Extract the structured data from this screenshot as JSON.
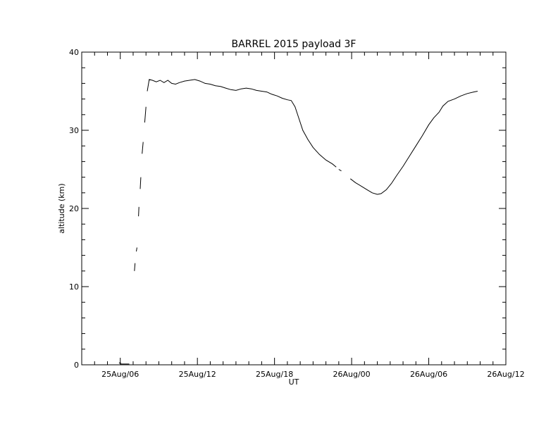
{
  "chart_data": {
    "type": "line",
    "title": "BARREL 2015 payload 3F",
    "xlabel": "UT",
    "ylabel": "altitude (km)",
    "x_unit": "hours since 25Aug/00 UT",
    "xlim": [
      3,
      36
    ],
    "ylim": [
      0,
      40
    ],
    "x_ticks": [
      {
        "value": 6,
        "label": "25Aug/06"
      },
      {
        "value": 12,
        "label": "25Aug/12"
      },
      {
        "value": 18,
        "label": "25Aug/18"
      },
      {
        "value": 24,
        "label": "26Aug/00"
      },
      {
        "value": 30,
        "label": "26Aug/06"
      },
      {
        "value": 36,
        "label": "26Aug/12"
      }
    ],
    "y_ticks": [
      {
        "value": 0,
        "label": "0"
      },
      {
        "value": 10,
        "label": "10"
      },
      {
        "value": 20,
        "label": "20"
      },
      {
        "value": 30,
        "label": "30"
      },
      {
        "value": 40,
        "label": "40"
      }
    ],
    "grid": false,
    "series": [
      {
        "color": "#000000",
        "segments": [
          [
            [
              5.9,
              0.2
            ],
            [
              6.0,
              0.3
            ],
            [
              6.05,
              0.1
            ],
            [
              6.7,
              0.1
            ]
          ],
          [
            [
              7.1,
              12.0
            ],
            [
              7.15,
              13.0
            ]
          ],
          [
            [
              7.25,
              14.5
            ],
            [
              7.3,
              15.0
            ]
          ],
          [
            [
              7.42,
              19.0
            ],
            [
              7.45,
              20.2
            ]
          ],
          [
            [
              7.55,
              22.5
            ],
            [
              7.6,
              24.0
            ]
          ],
          [
            [
              7.7,
              27.0
            ],
            [
              7.78,
              28.5
            ]
          ],
          [
            [
              7.9,
              31.0
            ],
            [
              8.0,
              33.0
            ]
          ],
          [
            [
              8.1,
              35.0
            ],
            [
              8.25,
              36.5
            ],
            [
              8.5,
              36.4
            ],
            [
              8.8,
              36.2
            ],
            [
              9.1,
              36.4
            ],
            [
              9.4,
              36.1
            ],
            [
              9.7,
              36.4
            ],
            [
              10.0,
              36.0
            ],
            [
              10.3,
              35.9
            ],
            [
              10.6,
              36.1
            ],
            [
              11.0,
              36.3
            ],
            [
              11.4,
              36.4
            ],
            [
              11.8,
              36.5
            ],
            [
              12.2,
              36.3
            ],
            [
              12.6,
              36.0
            ],
            [
              13.0,
              35.9
            ],
            [
              13.4,
              35.7
            ],
            [
              13.8,
              35.6
            ],
            [
              14.2,
              35.4
            ],
            [
              14.6,
              35.2
            ],
            [
              15.0,
              35.1
            ],
            [
              15.4,
              35.3
            ],
            [
              15.8,
              35.4
            ],
            [
              16.2,
              35.3
            ],
            [
              16.6,
              35.1
            ],
            [
              17.0,
              35.0
            ],
            [
              17.4,
              34.9
            ],
            [
              17.8,
              34.6
            ],
            [
              18.2,
              34.4
            ],
            [
              18.6,
              34.1
            ],
            [
              19.0,
              33.9
            ],
            [
              19.3,
              33.8
            ],
            [
              19.6,
              33.0
            ],
            [
              19.9,
              31.5
            ],
            [
              20.2,
              30.0
            ],
            [
              20.6,
              28.8
            ],
            [
              21.0,
              27.8
            ],
            [
              21.5,
              26.9
            ],
            [
              22.0,
              26.2
            ],
            [
              22.5,
              25.7
            ],
            [
              22.8,
              25.3
            ]
          ],
          [
            [
              23.0,
              25.0
            ],
            [
              23.2,
              24.8
            ]
          ],
          [
            [
              23.9,
              23.8
            ],
            [
              24.3,
              23.3
            ],
            [
              24.8,
              22.8
            ],
            [
              25.2,
              22.4
            ],
            [
              25.6,
              22.0
            ],
            [
              26.0,
              21.8
            ],
            [
              26.3,
              21.9
            ],
            [
              26.7,
              22.4
            ],
            [
              27.1,
              23.2
            ],
            [
              27.5,
              24.2
            ],
            [
              28.0,
              25.4
            ],
            [
              28.5,
              26.7
            ],
            [
              29.0,
              28.0
            ],
            [
              29.5,
              29.3
            ],
            [
              30.0,
              30.7
            ],
            [
              30.4,
              31.6
            ],
            [
              30.8,
              32.3
            ],
            [
              31.1,
              33.1
            ],
            [
              31.5,
              33.7
            ],
            [
              32.0,
              34.0
            ],
            [
              32.5,
              34.4
            ],
            [
              33.0,
              34.7
            ],
            [
              33.5,
              34.9
            ],
            [
              33.8,
              35.0
            ]
          ]
        ]
      }
    ]
  }
}
